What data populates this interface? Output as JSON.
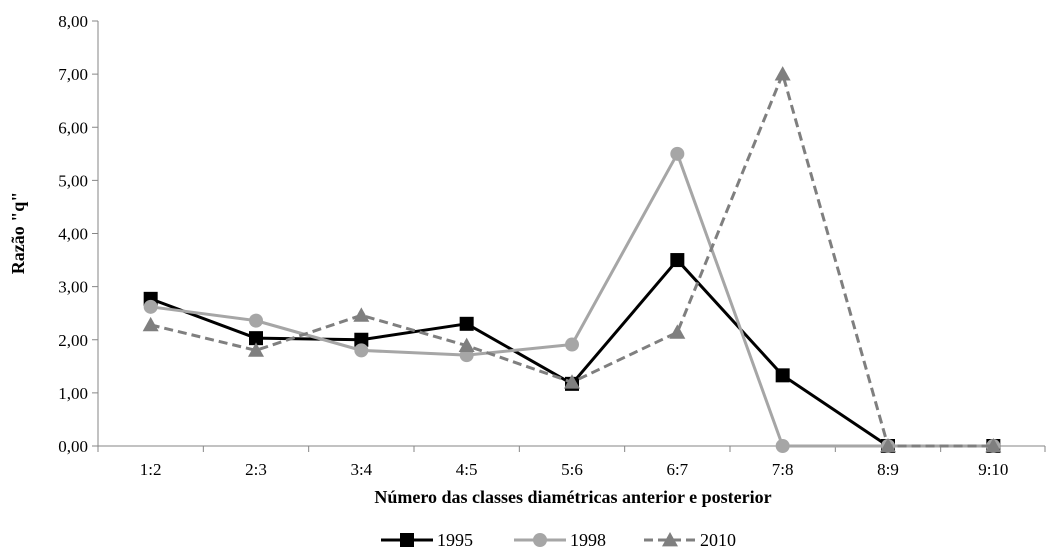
{
  "chart_data": {
    "type": "line",
    "title": "",
    "xlabel": "Número das classes diamétricas anterior e posterior",
    "ylabel": "Razão \"q\"",
    "categories": [
      "1:2",
      "2:3",
      "3:4",
      "4:5",
      "5:6",
      "6:7",
      "7:8",
      "8:9",
      "9:10"
    ],
    "ylim": [
      0,
      8
    ],
    "yticks": [
      "0,00",
      "1,00",
      "2,00",
      "3,00",
      "4,00",
      "5,00",
      "6,00",
      "7,00",
      "8,00"
    ],
    "grid": false,
    "legend_position": "bottom",
    "series": [
      {
        "name": "1995",
        "color": "#000000",
        "dash": "solid",
        "marker": "square",
        "values": [
          2.77,
          2.03,
          2.0,
          2.3,
          1.17,
          3.5,
          1.33,
          0.0,
          0.0
        ]
      },
      {
        "name": "1998",
        "color": "#a6a6a6",
        "dash": "solid",
        "marker": "circle",
        "values": [
          2.62,
          2.36,
          1.8,
          1.71,
          1.91,
          5.5,
          0.0,
          0.0,
          0.0
        ]
      },
      {
        "name": "2010",
        "color": "#7f7f7f",
        "dash": "dashed",
        "marker": "triangle",
        "values": [
          2.28,
          1.8,
          2.46,
          1.89,
          1.2,
          2.14,
          7.0,
          0.0,
          0.0
        ]
      }
    ]
  }
}
